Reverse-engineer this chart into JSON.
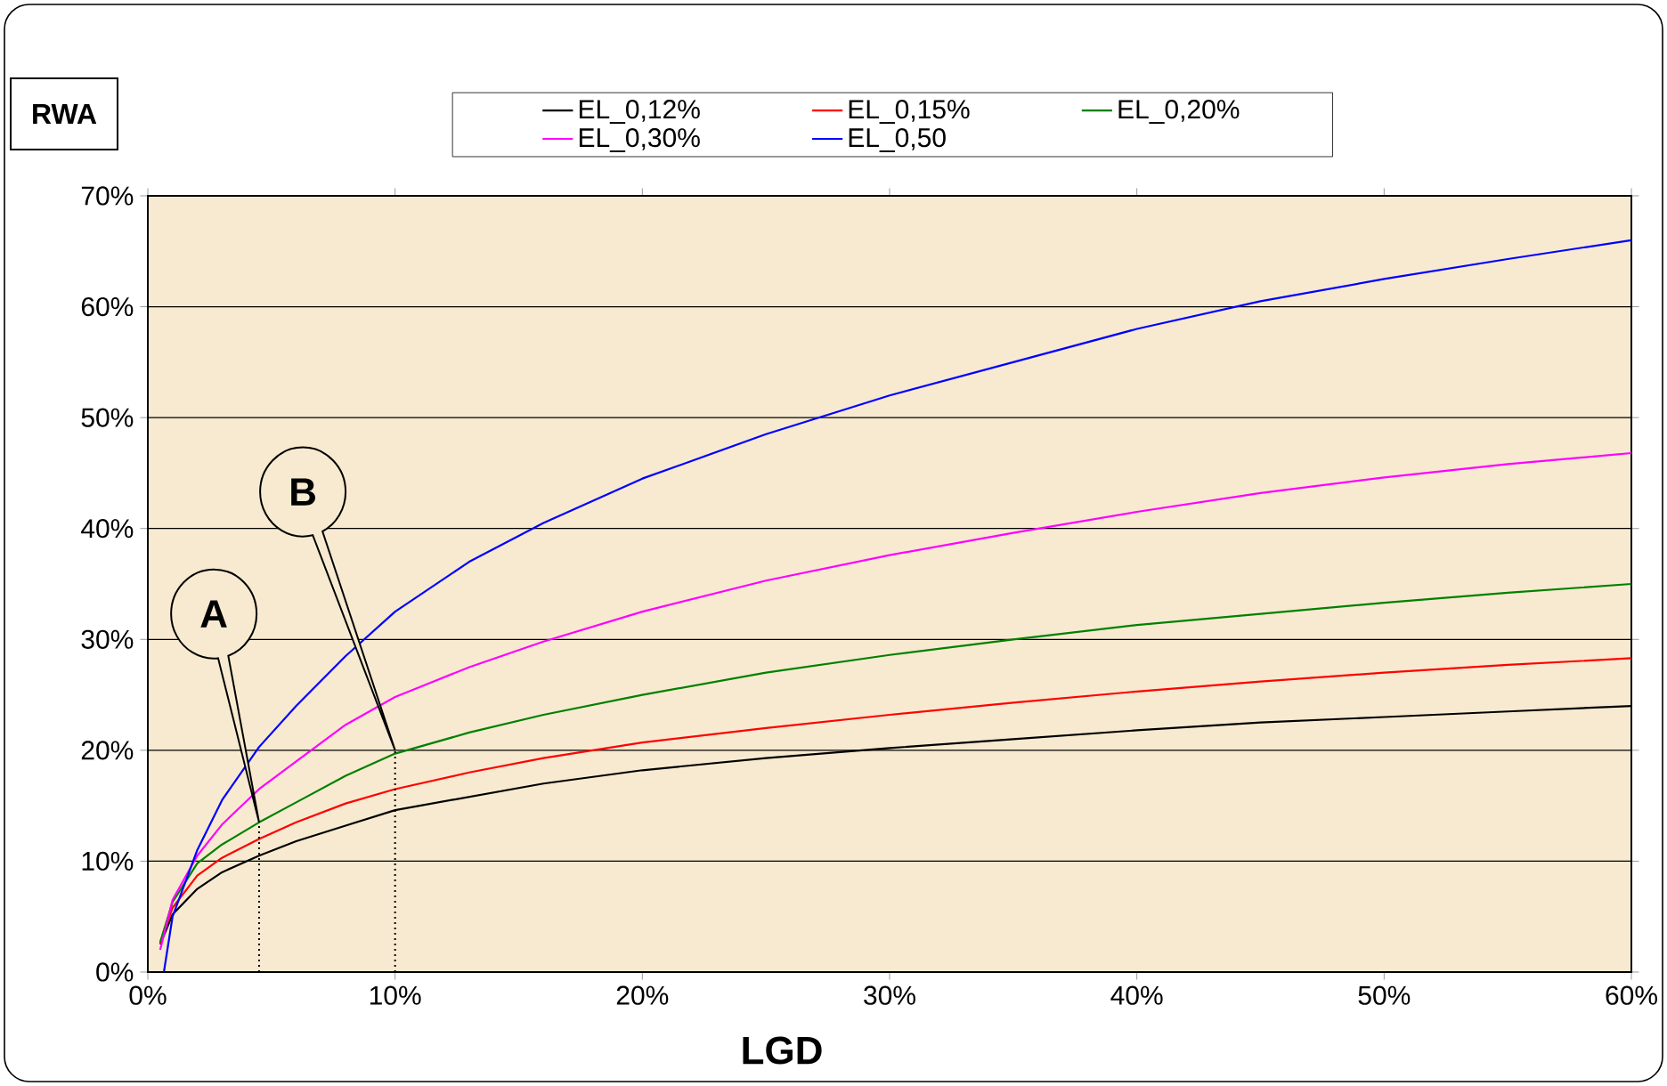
{
  "chart_data": {
    "type": "line",
    "xlabel": "LGD",
    "ylabel": "RWA",
    "xlim": [
      0,
      60
    ],
    "ylim": [
      0,
      70
    ],
    "xticks": [
      {
        "value": 0,
        "label": "0%"
      },
      {
        "value": 10,
        "label": "10%"
      },
      {
        "value": 20,
        "label": "20%"
      },
      {
        "value": 30,
        "label": "30%"
      },
      {
        "value": 40,
        "label": "40%"
      },
      {
        "value": 50,
        "label": "50%"
      },
      {
        "value": 60,
        "label": "60%"
      }
    ],
    "yticks": [
      {
        "value": 0,
        "label": "0%"
      },
      {
        "value": 10,
        "label": "10%"
      },
      {
        "value": 20,
        "label": "20%"
      },
      {
        "value": 30,
        "label": "30%"
      },
      {
        "value": 40,
        "label": "40%"
      },
      {
        "value": 50,
        "label": "50%"
      },
      {
        "value": 60,
        "label": "60%"
      },
      {
        "value": 70,
        "label": "70%"
      }
    ],
    "grid": "y",
    "legend": "top",
    "marker": "none",
    "line_style": "solid",
    "x": [
      0.5,
      1,
      2,
      3,
      4.5,
      6,
      8,
      10,
      13,
      16,
      20,
      25,
      30,
      35,
      40,
      45,
      50,
      55,
      60
    ],
    "series": [
      {
        "name": "EL_0,12%",
        "color": "#000000",
        "values": [
          2.5,
          5.2,
          7.5,
          9,
          10.5,
          11.8,
          13.2,
          14.6,
          15.8,
          17,
          18.2,
          19.3,
          20.2,
          21,
          21.8,
          22.5,
          23,
          23.5,
          24
        ]
      },
      {
        "name": "EL_0,15%",
        "color": "#ff0000",
        "values": [
          2.6,
          5.8,
          8.7,
          10.3,
          12,
          13.5,
          15.2,
          16.5,
          18,
          19.3,
          20.7,
          22,
          23.2,
          24.3,
          25.3,
          26.2,
          27,
          27.7,
          28.3
        ]
      },
      {
        "name": "EL_0,20%",
        "color": "#008000",
        "values": [
          2.7,
          6.3,
          9.8,
          11.5,
          13.5,
          15.3,
          17.7,
          19.7,
          21.6,
          23.2,
          25,
          27,
          28.6,
          30,
          31.3,
          32.3,
          33.3,
          34.2,
          35
        ]
      },
      {
        "name": "EL_0,30%",
        "color": "#ff00ff",
        "values": [
          2,
          6.5,
          10.5,
          13.3,
          16.5,
          19,
          22.3,
          24.8,
          27.5,
          29.8,
          32.5,
          35.3,
          37.6,
          39.6,
          41.5,
          43.2,
          44.6,
          45.8,
          46.8
        ]
      },
      {
        "name": "EL_0,50",
        "color": "#0000ff",
        "x": [
          0.65,
          1,
          2,
          3,
          4.5,
          6,
          8,
          10,
          13,
          16,
          20,
          25,
          30,
          35,
          40,
          45,
          50,
          55,
          60
        ],
        "values": [
          0,
          5,
          11,
          15.5,
          20.3,
          24,
          28.5,
          32.5,
          37,
          40.5,
          44.5,
          48.5,
          52,
          55,
          58,
          60.5,
          62.5,
          64.3,
          66
        ]
      }
    ],
    "annotations": [
      "A",
      "B"
    ]
  }
}
